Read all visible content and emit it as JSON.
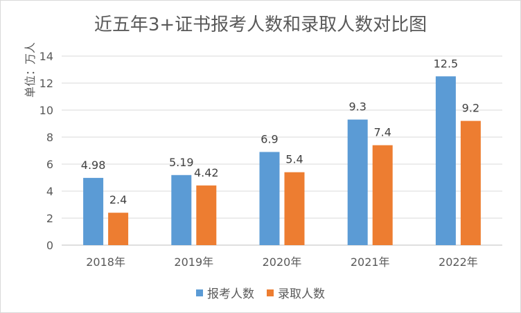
{
  "chart_data": {
    "type": "bar",
    "title": "近五年3+证书报考人数和录取人数对比图",
    "ylabel": "单位：万人",
    "xlabel": "",
    "categories": [
      "2018年",
      "2019年",
      "2020年",
      "2021年",
      "2022年"
    ],
    "series": [
      {
        "name": "报考人数",
        "values": [
          4.98,
          5.19,
          6.9,
          9.3,
          12.5
        ],
        "labels": [
          "4.98",
          "5.19",
          "6.9",
          "9.3",
          "12.5"
        ],
        "color": "#5b9bd5"
      },
      {
        "name": "录取人数",
        "values": [
          2.4,
          4.42,
          5.4,
          7.4,
          9.2
        ],
        "labels": [
          "2.4",
          "4.42",
          "5.4",
          "7.4",
          "9.2"
        ],
        "color": "#ed7d31"
      }
    ],
    "ylim": [
      0,
      14
    ],
    "yticks": [
      0,
      2,
      4,
      6,
      8,
      10,
      12,
      14
    ],
    "grid": true,
    "legend": "bottom"
  }
}
